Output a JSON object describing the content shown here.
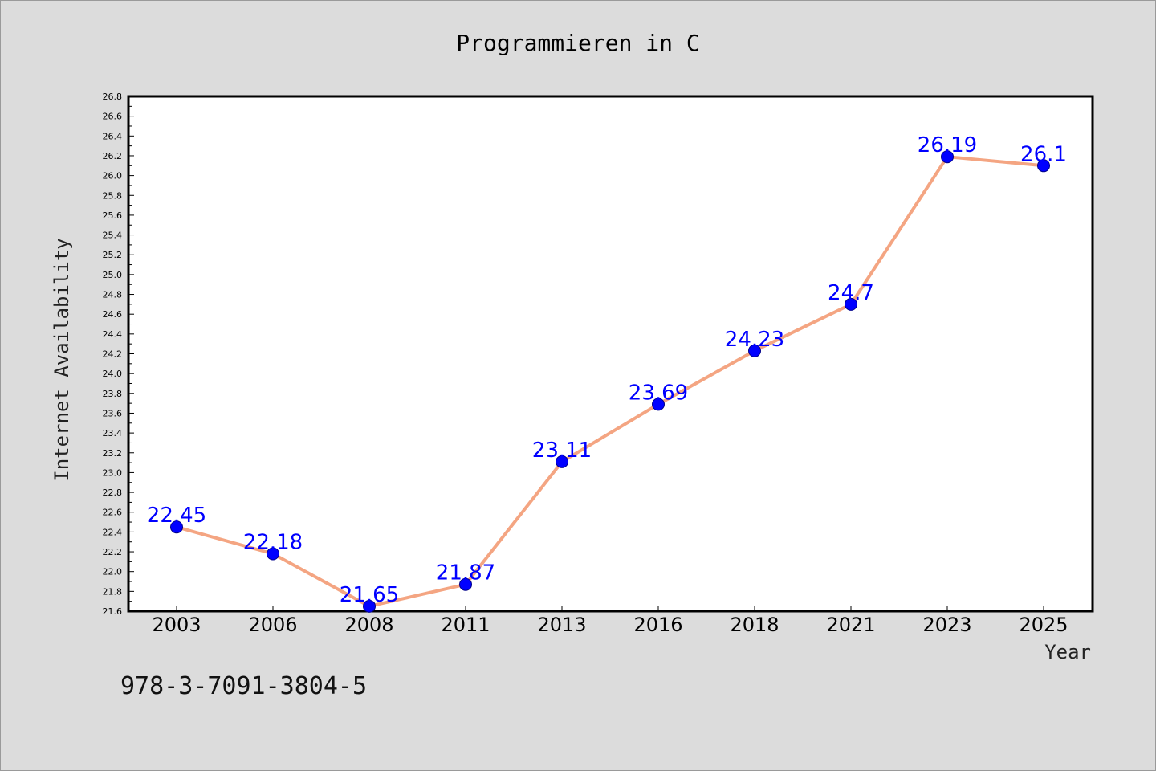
{
  "chart_data": {
    "type": "line",
    "title": "Programmieren in C",
    "xlabel": "Year",
    "ylabel": "Internet Availability",
    "categories": [
      "2003",
      "2006",
      "2008",
      "2011",
      "2013",
      "2016",
      "2018",
      "2021",
      "2023",
      "2025"
    ],
    "series": [
      {
        "values": [
          22.45,
          22.18,
          21.65,
          21.87,
          23.11,
          23.69,
          24.23,
          24.7,
          26.19,
          26.1
        ],
        "data_labels": [
          "22.45",
          "22.18",
          "21.65",
          "21.87",
          "23.11",
          "23.69",
          "24.23",
          "24.7",
          "26.19",
          "26.1"
        ],
        "line_color": "#f4a582",
        "marker_color": "#0000ff"
      }
    ],
    "ylim": [
      21.6,
      26.8
    ],
    "yticks": [
      "21.6",
      "21.8",
      "22.0",
      "22.2",
      "22.4",
      "22.6",
      "22.8",
      "23.0",
      "23.2",
      "23.4",
      "23.6",
      "23.8",
      "24.0",
      "24.2",
      "24.4",
      "24.6",
      "24.8",
      "25.0",
      "25.2",
      "25.4",
      "25.6",
      "25.8",
      "26.0",
      "26.2",
      "26.4",
      "26.6",
      "26.8"
    ],
    "grid": false,
    "legend": "none"
  },
  "annotation": {
    "isbn": "978-3-7091-3804-5"
  },
  "colors": {
    "background": "#dcdcdc",
    "plot_background": "#ffffff",
    "line": "#f4a582",
    "marker": "#0000ff",
    "data_label": "#0000ff"
  }
}
